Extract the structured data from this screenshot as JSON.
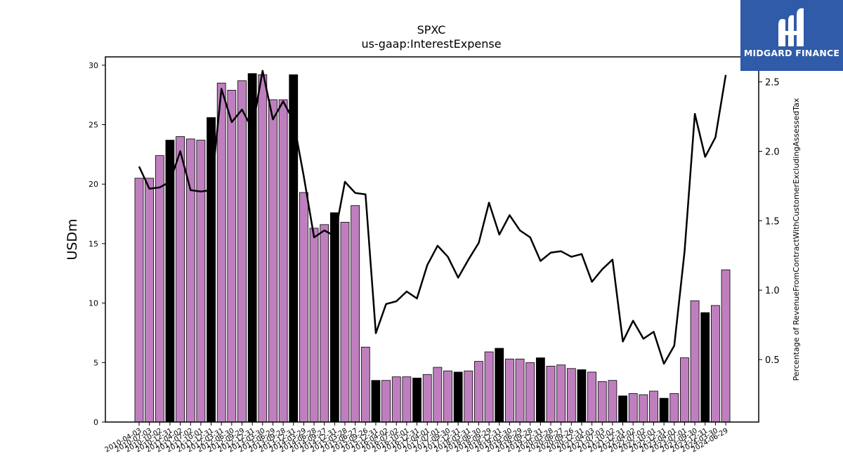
{
  "chart_data": {
    "type": "bar",
    "title": "SPXC",
    "subtitle": "us-gaap:InterestExpense",
    "ylabel": "USDm",
    "y2label": "Percentage of RevenueFromContractWithCustomerExcludingAssessedTax",
    "ylim": [
      0,
      30.7
    ],
    "y2lim": [
      0.05,
      2.68
    ],
    "yticks": [
      0,
      5,
      10,
      15,
      20,
      25,
      30
    ],
    "y2ticks": [
      "0.5",
      "1.0",
      "1.5",
      "2.0",
      "2.5"
    ],
    "grid": false,
    "categories": [
      "2010-04-03",
      "2010-07-03",
      "2010-10-02",
      "2010-12-31",
      "2011-04-02",
      "2011-07-02",
      "2011-10-01",
      "2011-12-31",
      "2012-03-31",
      "2012-06-30",
      "2012-09-29",
      "2012-12-31",
      "2013-03-30",
      "2013-06-29",
      "2013-09-28",
      "2013-12-31",
      "2014-03-29",
      "2014-06-28",
      "2014-09-27",
      "2014-12-31",
      "2015-03-28",
      "2015-06-27",
      "2015-09-26",
      "2015-12-31",
      "2016-04-02",
      "2016-07-02",
      "2016-10-01",
      "2016-12-31",
      "2017-04-01",
      "2017-07-01",
      "2017-09-30",
      "2017-12-31",
      "2018-03-31",
      "2018-06-30",
      "2018-09-29",
      "2018-12-31",
      "2019-03-30",
      "2019-06-29",
      "2019-09-28",
      "2019-12-31",
      "2020-03-28",
      "2020-06-27",
      "2020-09-26",
      "2020-12-31",
      "2021-04-03",
      "2021-07-03",
      "2021-10-02",
      "2021-12-31",
      "2022-04-02",
      "2022-07-02",
      "2022-10-01",
      "2022-12-31",
      "2023-04-01",
      "2023-07-01",
      "2023-09-30",
      "2023-12-31",
      "2024-03-30",
      "2024-06-29"
    ],
    "series": [
      {
        "type": "bar",
        "values": [
          20.5,
          20.5,
          22.4,
          23.7,
          24.0,
          23.8,
          23.7,
          25.6,
          28.5,
          27.9,
          28.7,
          29.3,
          29.2,
          27.1,
          27.1,
          29.2,
          19.3,
          16.3,
          16.6,
          17.6,
          16.8,
          18.2,
          6.3,
          3.5,
          3.5,
          3.8,
          3.8,
          3.7,
          4.0,
          4.6,
          4.3,
          4.2,
          4.3,
          5.1,
          5.9,
          6.2,
          5.3,
          5.3,
          5.0,
          5.4,
          4.7,
          4.8,
          4.5,
          4.4,
          4.2,
          3.4,
          3.5,
          2.2,
          2.4,
          2.3,
          2.6,
          2.0,
          2.4,
          5.4,
          10.2,
          9.2,
          9.8,
          12.8
        ],
        "colors": [
          "#bf7fbf",
          "#bf7fbf",
          "#bf7fbf",
          "#000000",
          "#bf7fbf",
          "#bf7fbf",
          "#bf7fbf",
          "#000000",
          "#bf7fbf",
          "#bf7fbf",
          "#bf7fbf",
          "#000000",
          "#bf7fbf",
          "#bf7fbf",
          "#bf7fbf",
          "#000000",
          "#bf7fbf",
          "#bf7fbf",
          "#bf7fbf",
          "#000000",
          "#bf7fbf",
          "#bf7fbf",
          "#bf7fbf",
          "#000000",
          "#bf7fbf",
          "#bf7fbf",
          "#bf7fbf",
          "#000000",
          "#bf7fbf",
          "#bf7fbf",
          "#bf7fbf",
          "#000000",
          "#bf7fbf",
          "#bf7fbf",
          "#bf7fbf",
          "#000000",
          "#bf7fbf",
          "#bf7fbf",
          "#bf7fbf",
          "#000000",
          "#bf7fbf",
          "#bf7fbf",
          "#bf7fbf",
          "#000000",
          "#bf7fbf",
          "#bf7fbf",
          "#bf7fbf",
          "#000000",
          "#bf7fbf",
          "#bf7fbf",
          "#bf7fbf",
          "#000000",
          "#bf7fbf",
          "#bf7fbf",
          "#bf7fbf",
          "#000000",
          "#bf7fbf",
          "#bf7fbf"
        ]
      },
      {
        "type": "line",
        "axis": "right",
        "color": "#000000",
        "values": [
          1.89,
          1.73,
          1.74,
          1.78,
          2.0,
          1.72,
          1.71,
          1.72,
          2.45,
          2.21,
          2.3,
          2.16,
          2.58,
          2.23,
          2.36,
          2.22,
          1.82,
          1.38,
          1.43,
          1.39,
          1.78,
          1.7,
          1.69,
          0.69,
          0.9,
          0.92,
          0.99,
          0.94,
          1.18,
          1.32,
          1.24,
          1.09,
          1.22,
          1.34,
          1.63,
          1.4,
          1.54,
          1.43,
          1.38,
          1.21,
          1.27,
          1.28,
          1.24,
          1.26,
          1.06,
          1.15,
          1.22,
          0.63,
          0.78,
          0.65,
          0.7,
          0.47,
          0.6,
          1.28,
          2.27,
          1.96,
          2.1,
          2.55
        ]
      }
    ]
  },
  "logo": {
    "text": "MIDGARD FINANCE",
    "bg_color": "#2f5ba8",
    "icon": "midgard-m-logo-icon"
  }
}
